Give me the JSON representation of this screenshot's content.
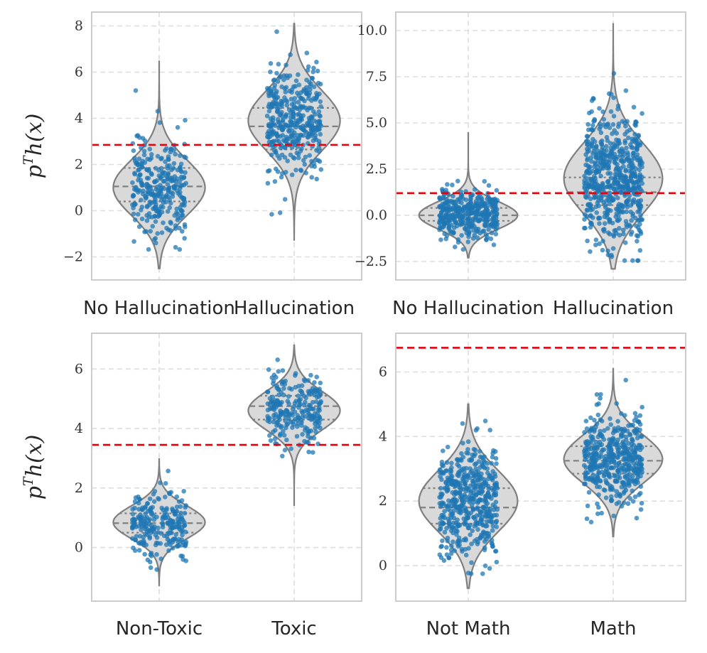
{
  "chart_data": [
    {
      "type": "violin",
      "ylabel": "p^T h(x)",
      "ylabel_base": "p",
      "ylabel_sup": "T",
      "ylabel_rest": "h(x)",
      "categories": [
        "No Hallucination",
        "Hallucination"
      ],
      "ylim": [
        -3.0,
        8.6
      ],
      "yticks": [
        -2,
        0,
        2,
        4,
        6,
        8
      ],
      "ytick_labels": [
        "−2",
        "0",
        "2",
        "4",
        "6",
        "8"
      ],
      "threshold": 2.85,
      "grid": true,
      "violins": [
        {
          "category": "No Hallucination",
          "min": -2.5,
          "max": 6.5,
          "q1": 0.4,
          "median": 1.05,
          "q3": 1.85,
          "center": 1.0,
          "spread": 1.2,
          "n_points": 300
        },
        {
          "category": "Hallucination",
          "min": -1.3,
          "max": 8.1,
          "q1": 2.65,
          "median": 3.65,
          "q3": 4.45,
          "center": 3.9,
          "spread": 1.3,
          "n_points": 380
        }
      ]
    },
    {
      "type": "violin",
      "ylabel": "",
      "categories": [
        "No Hallucination",
        "Hallucination"
      ],
      "ylim": [
        -3.5,
        11.0
      ],
      "yticks": [
        -2.5,
        0.0,
        2.5,
        5.0,
        7.5,
        10.0
      ],
      "ytick_labels": [
        "−2.5",
        "0.0",
        "2.5",
        "5.0",
        "7.5",
        "10.0"
      ],
      "threshold": 1.2,
      "grid": true,
      "violins": [
        {
          "category": "No Hallucination",
          "min": -2.3,
          "max": 4.5,
          "q1": -0.3,
          "median": 0.0,
          "q3": 0.4,
          "center": 0.0,
          "spread": 0.75,
          "n_points": 380
        },
        {
          "category": "Hallucination",
          "min": -2.9,
          "max": 10.4,
          "q1": 0.55,
          "median": 1.25,
          "q3": 2.05,
          "center": 2.0,
          "spread": 1.9,
          "n_points": 600
        }
      ]
    },
    {
      "type": "violin",
      "ylabel": "p^T h(x)",
      "ylabel_base": "p",
      "ylabel_sup": "T",
      "ylabel_rest": "h(x)",
      "categories": [
        "Non-Toxic",
        "Toxic"
      ],
      "ylim": [
        -1.8,
        7.2
      ],
      "yticks": [
        0,
        2,
        4,
        6
      ],
      "ytick_labels": [
        "0",
        "2",
        "4",
        "6"
      ],
      "threshold": 3.45,
      "grid": true,
      "violins": [
        {
          "category": "Non-Toxic",
          "min": -1.3,
          "max": 3.0,
          "q1": 0.5,
          "median": 0.82,
          "q3": 1.15,
          "center": 0.85,
          "spread": 0.55,
          "n_points": 240
        },
        {
          "category": "Toxic",
          "min": 1.4,
          "max": 6.8,
          "q1": 4.3,
          "median": 4.75,
          "q3": 5.1,
          "center": 4.6,
          "spread": 0.65,
          "n_points": 240
        }
      ]
    },
    {
      "type": "violin",
      "ylabel": "",
      "categories": [
        "Not Math",
        "Math"
      ],
      "ylim": [
        -1.1,
        7.2
      ],
      "yticks": [
        0,
        2,
        4,
        6
      ],
      "ytick_labels": [
        "0",
        "2",
        "4",
        "6"
      ],
      "threshold": 6.75,
      "grid": true,
      "violins": [
        {
          "category": "Not Math",
          "min": -0.7,
          "max": 5.0,
          "q1": 1.3,
          "median": 1.8,
          "q3": 2.4,
          "center": 2.0,
          "spread": 0.95,
          "n_points": 500
        },
        {
          "category": "Math",
          "min": 0.9,
          "max": 6.1,
          "q1": 2.85,
          "median": 3.25,
          "q3": 3.7,
          "center": 3.3,
          "spread": 0.75,
          "n_points": 450
        }
      ]
    }
  ],
  "colors": {
    "points": "#1f77b4",
    "threshold": "#e8000b",
    "violin_fill": "#d9d9d9",
    "violin_edge": "#7f7f7f",
    "grid": "#dddddd",
    "spine": "#cccccc"
  }
}
